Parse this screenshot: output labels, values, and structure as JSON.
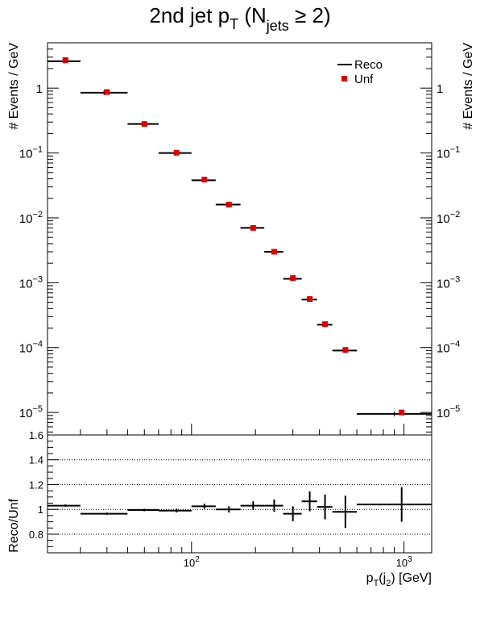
{
  "title": {
    "main": "2nd jet p",
    "sub_T": "T",
    "paren_open": " (N",
    "sub_jets": "jets",
    "rest": " ≥ 2)"
  },
  "colors": {
    "reco": "#000000",
    "unf": "#dd0000",
    "grid": "#000000"
  },
  "chart_data": [
    {
      "type": "scatter",
      "panel": "main",
      "xscale": "log",
      "yscale": "log",
      "xlim": [
        21,
        1350
      ],
      "ylim": [
        4.5e-06,
        5
      ],
      "ylabel": "# Events / GeV",
      "yticks": [
        {
          "v": 1,
          "base": "1",
          "exp": ""
        },
        {
          "v": 0.1,
          "base": "10",
          "exp": "−1"
        },
        {
          "v": 0.01,
          "base": "10",
          "exp": "−2"
        },
        {
          "v": 0.001,
          "base": "10",
          "exp": "−3"
        },
        {
          "v": 0.0001,
          "base": "10",
          "exp": "−4"
        },
        {
          "v": 1e-05,
          "base": "10",
          "exp": "−5"
        }
      ],
      "legend": {
        "position": "top-right",
        "entries": [
          "Reco",
          "Unf"
        ]
      },
      "series": [
        {
          "name": "Reco",
          "style": "horizontal-bin-line",
          "bins": [
            {
              "x_lo": 21,
              "x_hi": 30,
              "y": 2.6
            },
            {
              "x_lo": 30,
              "x_hi": 50,
              "y": 0.85
            },
            {
              "x_lo": 50,
              "x_hi": 70,
              "y": 0.28
            },
            {
              "x_lo": 70,
              "x_hi": 100,
              "y": 0.1
            },
            {
              "x_lo": 100,
              "x_hi": 130,
              "y": 0.038
            },
            {
              "x_lo": 130,
              "x_hi": 170,
              "y": 0.016
            },
            {
              "x_lo": 170,
              "x_hi": 220,
              "y": 0.007
            },
            {
              "x_lo": 220,
              "x_hi": 270,
              "y": 0.003
            },
            {
              "x_lo": 270,
              "x_hi": 330,
              "y": 0.00115
            },
            {
              "x_lo": 330,
              "x_hi": 390,
              "y": 0.00055
            },
            {
              "x_lo": 390,
              "x_hi": 460,
              "y": 0.000225
            },
            {
              "x_lo": 460,
              "x_hi": 600,
              "y": 9e-05
            },
            {
              "x_lo": 600,
              "x_hi": 1350,
              "y": 9.5e-06
            }
          ]
        },
        {
          "name": "Unf",
          "style": "square-marker",
          "points": [
            {
              "x": 25.5,
              "y": 2.7
            },
            {
              "x": 40,
              "y": 0.87
            },
            {
              "x": 60,
              "y": 0.28
            },
            {
              "x": 85,
              "y": 0.101
            },
            {
              "x": 115,
              "y": 0.039
            },
            {
              "x": 150,
              "y": 0.016
            },
            {
              "x": 195,
              "y": 0.007
            },
            {
              "x": 245,
              "y": 0.003
            },
            {
              "x": 300,
              "y": 0.00118
            },
            {
              "x": 360,
              "y": 0.00056
            },
            {
              "x": 425,
              "y": 0.00023
            },
            {
              "x": 530,
              "y": 9.2e-05
            },
            {
              "x": 975,
              "y": 1e-05
            }
          ]
        }
      ]
    },
    {
      "type": "scatter",
      "panel": "ratio",
      "xscale": "log",
      "xlim": [
        21,
        1350
      ],
      "ylim": [
        0.65,
        1.6
      ],
      "ylabel": "Reco/Unf",
      "xlabel_main": "p",
      "xlabel_sub_T": "T",
      "xlabel_mid": "(j",
      "xlabel_sub_2": "2",
      "xlabel_end": ") [GeV]",
      "yticks": [
        "0.8",
        "1",
        "1.2",
        "1.4",
        "1.6"
      ],
      "ytick_values": [
        0.8,
        1.0,
        1.2,
        1.4,
        1.6
      ],
      "gridlines": [
        0.8,
        1.0,
        1.2,
        1.4
      ],
      "grid": "dotted-horizontal",
      "xticks": [
        {
          "v": 100,
          "base": "10",
          "exp": "2"
        },
        {
          "v": 1000,
          "base": "10",
          "exp": "3"
        }
      ],
      "series": [
        {
          "name": "Reco/Unf",
          "points": [
            {
              "x_lo": 21,
              "x_hi": 30,
              "x": 25.5,
              "y": 1.03,
              "err": 0.01
            },
            {
              "x_lo": 30,
              "x_hi": 50,
              "x": 40,
              "y": 0.965,
              "err": 0.01
            },
            {
              "x_lo": 50,
              "x_hi": 70,
              "x": 60,
              "y": 0.995,
              "err": 0.01
            },
            {
              "x_lo": 70,
              "x_hi": 100,
              "x": 85,
              "y": 0.99,
              "err": 0.015
            },
            {
              "x_lo": 100,
              "x_hi": 130,
              "x": 115,
              "y": 1.025,
              "err": 0.02
            },
            {
              "x_lo": 130,
              "x_hi": 170,
              "x": 150,
              "y": 1.0,
              "err": 0.025
            },
            {
              "x_lo": 170,
              "x_hi": 220,
              "x": 195,
              "y": 1.03,
              "err": 0.035
            },
            {
              "x_lo": 220,
              "x_hi": 270,
              "x": 245,
              "y": 1.03,
              "err": 0.05
            },
            {
              "x_lo": 270,
              "x_hi": 330,
              "x": 300,
              "y": 0.965,
              "err": 0.06
            },
            {
              "x_lo": 330,
              "x_hi": 390,
              "x": 360,
              "y": 1.065,
              "err": 0.08
            },
            {
              "x_lo": 390,
              "x_hi": 460,
              "x": 425,
              "y": 1.02,
              "err": 0.1
            },
            {
              "x_lo": 460,
              "x_hi": 600,
              "x": 530,
              "y": 0.98,
              "err": 0.13
            },
            {
              "x_lo": 600,
              "x_hi": 1350,
              "x": 975,
              "y": 1.04,
              "err": 0.14
            }
          ]
        }
      ]
    }
  ]
}
